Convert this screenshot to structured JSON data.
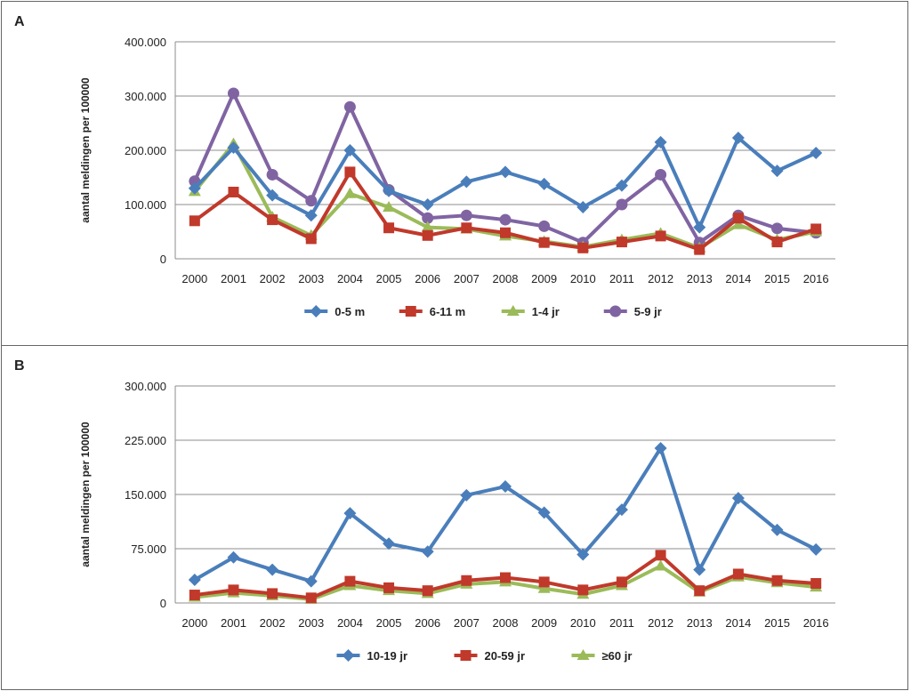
{
  "chart_data": [
    {
      "panel": "A",
      "type": "line",
      "ylabel": "aantal meldingen per 100000",
      "ylim": [
        0,
        400
      ],
      "yticks": [
        0,
        100,
        200,
        300,
        400
      ],
      "ytick_labels": [
        "0",
        "100.000",
        "200.000",
        "300.000",
        "400.000"
      ],
      "categories": [
        "2000",
        "2001",
        "2002",
        "2003",
        "2004",
        "2005",
        "2006",
        "2007",
        "2008",
        "2009",
        "2010",
        "2011",
        "2012",
        "2013",
        "2014",
        "2015",
        "2016"
      ],
      "grid": true,
      "legend_position": "bottom",
      "series": [
        {
          "name": "0-5 m",
          "color": "#4a7ebb",
          "marker": "diamond",
          "values": [
            130,
            205,
            117,
            80,
            200,
            125,
            100,
            142,
            160,
            138,
            95,
            135,
            215,
            58,
            223,
            162,
            195
          ]
        },
        {
          "name": "6-11 m",
          "color": "#c0392b",
          "marker": "square",
          "values": [
            70,
            123,
            72,
            37,
            160,
            57,
            43,
            57,
            48,
            30,
            20,
            31,
            42,
            17,
            75,
            31,
            55
          ]
        },
        {
          "name": "1-4 jr",
          "color": "#9bbb59",
          "marker": "triangle",
          "values": [
            124,
            212,
            77,
            43,
            120,
            95,
            58,
            55,
            42,
            32,
            22,
            35,
            47,
            20,
            63,
            35,
            50
          ]
        },
        {
          "name": "5-9 jr",
          "color": "#8064a2",
          "marker": "circle",
          "values": [
            143,
            305,
            155,
            107,
            280,
            127,
            75,
            80,
            72,
            60,
            30,
            100,
            155,
            30,
            80,
            56,
            48
          ]
        }
      ]
    },
    {
      "panel": "B",
      "type": "line",
      "ylabel": "aantal meldingen per 100000",
      "ylim": [
        0,
        300
      ],
      "yticks": [
        0,
        75,
        150,
        225,
        300
      ],
      "ytick_labels": [
        "0",
        "75.000",
        "150.000",
        "225.000",
        "300.000"
      ],
      "categories": [
        "2000",
        "2001",
        "2002",
        "2003",
        "2004",
        "2005",
        "2006",
        "2007",
        "2008",
        "2009",
        "2010",
        "2011",
        "2012",
        "2013",
        "2014",
        "2015",
        "2016"
      ],
      "grid": true,
      "legend_position": "bottom",
      "series": [
        {
          "name": "10-19 jr",
          "color": "#4a7ebb",
          "marker": "diamond",
          "values": [
            32,
            63,
            46,
            30,
            124,
            82,
            71,
            149,
            161,
            125,
            67,
            129,
            214,
            46,
            145,
            101,
            74
          ]
        },
        {
          "name": "20-59 jr",
          "color": "#c0392b",
          "marker": "square",
          "values": [
            11,
            18,
            13,
            7,
            30,
            21,
            17,
            31,
            35,
            29,
            18,
            29,
            66,
            17,
            40,
            31,
            27
          ]
        },
        {
          "name": "≥60 jr",
          "color": "#9bbb59",
          "marker": "triangle",
          "values": [
            8,
            14,
            10,
            5,
            24,
            17,
            13,
            26,
            29,
            20,
            12,
            24,
            51,
            15,
            36,
            28,
            22
          ]
        }
      ]
    }
  ]
}
